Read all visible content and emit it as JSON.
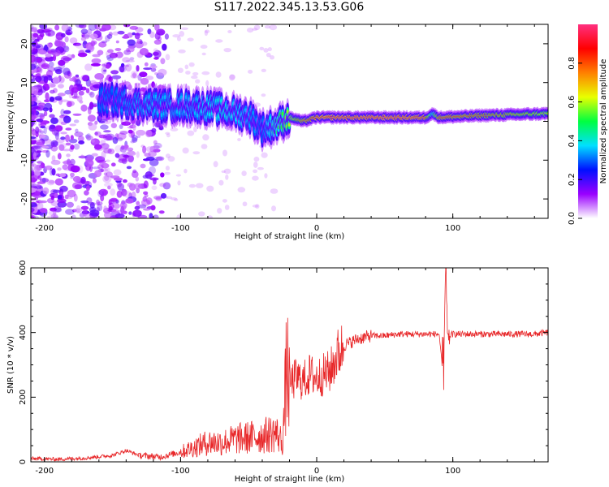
{
  "title": "S117.2022.345.13.53.G06",
  "chart_data": [
    {
      "type": "heatmap",
      "title": "S117.2022.345.13.53.G06",
      "xlabel": "Height of straight line (km)",
      "ylabel": "Frequency (Hz)",
      "xlim": [
        -210,
        170
      ],
      "ylim": [
        -25,
        25
      ],
      "xticks": [
        -200,
        -100,
        0,
        100
      ],
      "yticks": [
        -20,
        -10,
        0,
        10,
        20
      ],
      "colorbar": {
        "label": "Normalized spectral amplitude",
        "range": [
          0,
          1
        ],
        "ticks": [
          0.0,
          0.2,
          0.4,
          0.6,
          0.8
        ],
        "tick_labels": [
          "0.0",
          "0.2",
          "0.4",
          "0.6",
          "0.8"
        ],
        "colormap": "gist_ncar_like",
        "colors": [
          "#ffffff",
          "#9a00ff",
          "#0010ff",
          "#00e0ff",
          "#00ff40",
          "#e8ff00",
          "#ff8000",
          "#ff0000",
          "#ff3080"
        ]
      },
      "ridge": {
        "x": [
          -150,
          -130,
          -110,
          -90,
          -70,
          -50,
          -40,
          -30,
          -20,
          -10,
          0,
          20,
          60,
          80,
          85,
          90,
          120,
          170
        ],
        "freq_hz": [
          5.5,
          4.5,
          4,
          4,
          3,
          1.5,
          -2,
          -1,
          1,
          0,
          1,
          1,
          1,
          1,
          2,
          1,
          1.5,
          2
        ],
        "peak_amplitude": [
          0.3,
          0.35,
          0.35,
          0.35,
          0.4,
          0.35,
          0.3,
          0.45,
          0.6,
          0.8,
          0.9,
          0.95,
          0.95,
          0.9,
          0.4,
          0.85,
          0.8,
          0.65
        ]
      },
      "grid": false
    },
    {
      "type": "line",
      "xlabel": "Height of straight line (km)",
      "ylabel": "SNR (10 * v/v)",
      "xlim": [
        -210,
        170
      ],
      "ylim": [
        0,
        600
      ],
      "xticks": [
        -200,
        -100,
        0,
        100
      ],
      "yticks": [
        0,
        200,
        400,
        600
      ],
      "color": "#e8282a",
      "series": [
        {
          "x": [
            -210,
            -190,
            -170,
            -150,
            -140,
            -130,
            -115,
            -100,
            -90,
            -80,
            -70,
            -60,
            -50,
            -40,
            -30,
            -25,
            -22,
            -20,
            -15,
            -10,
            -5,
            0,
            5,
            10,
            15,
            20,
            30,
            40,
            50,
            60,
            70,
            80,
            90,
            93,
            95,
            96,
            100,
            110,
            120,
            140,
            160,
            170
          ],
          "y": [
            10,
            8,
            12,
            20,
            35,
            20,
            15,
            30,
            45,
            60,
            60,
            70,
            75,
            80,
            90,
            60,
            300,
            240,
            260,
            250,
            270,
            260,
            270,
            280,
            330,
            360,
            380,
            390,
            390,
            395,
            395,
            395,
            395,
            250,
            600,
            390,
            395,
            395,
            395,
            395,
            395,
            400
          ]
        }
      ],
      "grid": false
    }
  ]
}
